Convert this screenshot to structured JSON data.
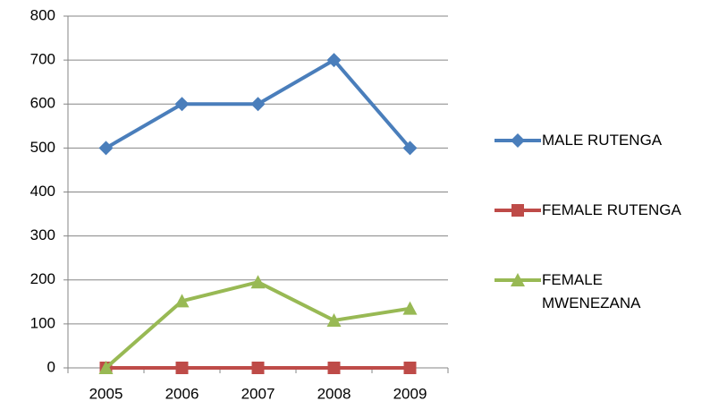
{
  "chart_data": {
    "type": "line",
    "categories": [
      "2005",
      "2006",
      "2007",
      "2008",
      "2009"
    ],
    "series": [
      {
        "name": "MALE RUTENGA",
        "color": "#4a7ebb",
        "marker": "diamond",
        "values": [
          500,
          600,
          600,
          700,
          500
        ]
      },
      {
        "name": "FEMALE RUTENGA",
        "color": "#be4b48",
        "marker": "square",
        "values": [
          0,
          0,
          0,
          0,
          0
        ]
      },
      {
        "name": "FEMALE MWENEZANA",
        "color": "#98b954",
        "marker": "triangle",
        "values": [
          0,
          152,
          195,
          108,
          135
        ]
      }
    ],
    "ylim": [
      0,
      800
    ],
    "yticks": [
      0,
      100,
      200,
      300,
      400,
      500,
      600,
      700,
      800
    ],
    "grid": true,
    "legend": "right"
  }
}
